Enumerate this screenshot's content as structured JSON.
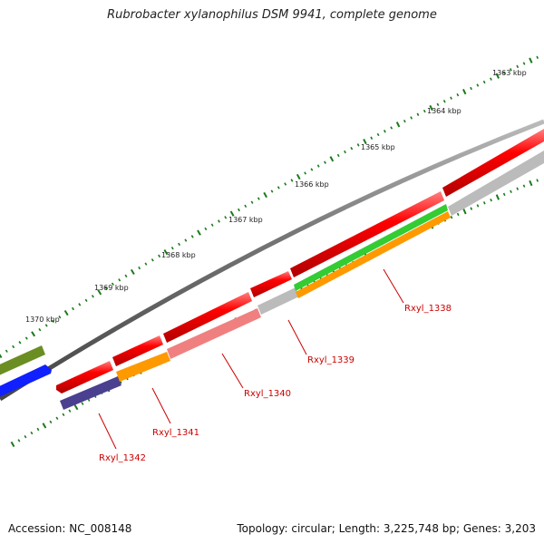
{
  "title": "Rubrobacter xylanophilus DSM 9941, complete genome",
  "accession": "Accession: NC_008148",
  "stats": "Topology: circular; Length: 3,225,748 bp; Genes: 3,203",
  "kbp_labels": [
    "1363 kbp",
    "1364 kbp",
    "1365 kbp",
    "1366 kbp",
    "1367 kbp",
    "1368 kbp",
    "1369 kbp",
    "1370 kbp"
  ],
  "gene_labels": [
    "Rxyl_1338",
    "Rxyl_1339",
    "Rxyl_1340",
    "Rxyl_1341",
    "Rxyl_1342"
  ],
  "colors": {
    "cds": "#ff0000",
    "backbone": "#777777",
    "olive": "#6b8e23",
    "blue": "#0000ff",
    "green": "#33cc33",
    "orange": "#ff9900",
    "pink": "#f08080",
    "grey": "#bbbbbb",
    "navy": "#4b3f8f",
    "tick": "#1a7a1a",
    "label": "#cc0000"
  }
}
